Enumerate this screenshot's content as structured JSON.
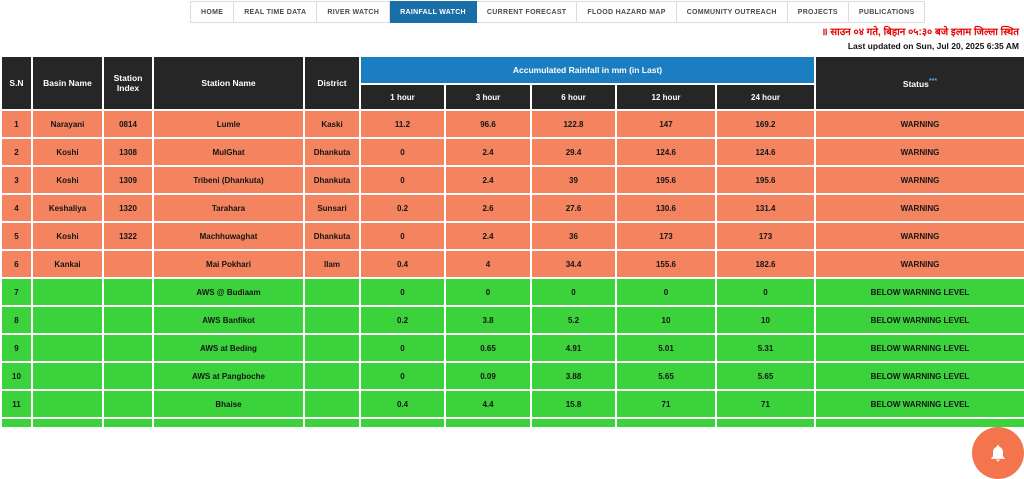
{
  "nav": {
    "tabs": [
      {
        "label": "HOME",
        "active": false
      },
      {
        "label": "REAL TIME DATA",
        "active": false
      },
      {
        "label": "RIVER WATCH",
        "active": false
      },
      {
        "label": "RAINFALL WATCH",
        "active": true
      },
      {
        "label": "CURRENT FORECAST",
        "active": false
      },
      {
        "label": "FLOOD HAZARD MAP",
        "active": false
      },
      {
        "label": "COMMUNITY OUTREACH",
        "active": false
      },
      {
        "label": "PROJECTS",
        "active": false
      },
      {
        "label": "PUBLICATIONS",
        "active": false
      }
    ]
  },
  "notice": {
    "marquee": "॥ साउन ०४ गते, बिहान ०५:३० बजे इलाम जिल्ला स्थित",
    "last_updated": "Last updated on Sun, Jul 20, 2025 6:35 AM"
  },
  "table": {
    "headers": {
      "sn": "S.N",
      "basin": "Basin Name",
      "index": "Station Index",
      "station": "Station Name",
      "district": "District"
    },
    "rainfall_header": "Accumulated Rainfall in mm (in Last)",
    "hour_columns": [
      "1 hour",
      "3 hour",
      "6 hour",
      "12 hour",
      "24 hour"
    ],
    "status_label": "Status",
    "status_sup": "***",
    "rows": [
      {
        "sn": "1",
        "basin": "Narayani",
        "index": "0814",
        "station": "Lumle",
        "district": "Kaski",
        "h1": "11.2",
        "h3": "96.6",
        "h6": "122.8",
        "h12": "147",
        "h24": "169.2",
        "status": "WARNING",
        "level": "warning"
      },
      {
        "sn": "2",
        "basin": "Koshi",
        "index": "1308",
        "station": "MulGhat",
        "district": "Dhankuta",
        "h1": "0",
        "h3": "2.4",
        "h6": "29.4",
        "h12": "124.6",
        "h24": "124.6",
        "status": "WARNING",
        "level": "warning"
      },
      {
        "sn": "3",
        "basin": "Koshi",
        "index": "1309",
        "station": "Tribeni (Dhankuta)",
        "district": "Dhankuta",
        "h1": "0",
        "h3": "2.4",
        "h6": "39",
        "h12": "195.6",
        "h24": "195.6",
        "status": "WARNING",
        "level": "warning"
      },
      {
        "sn": "4",
        "basin": "Keshaliya",
        "index": "1320",
        "station": "Tarahara",
        "district": "Sunsari",
        "h1": "0.2",
        "h3": "2.6",
        "h6": "27.6",
        "h12": "130.6",
        "h24": "131.4",
        "status": "WARNING",
        "level": "warning"
      },
      {
        "sn": "5",
        "basin": "Koshi",
        "index": "1322",
        "station": "Machhuwaghat",
        "district": "Dhankuta",
        "h1": "0",
        "h3": "2.4",
        "h6": "36",
        "h12": "173",
        "h24": "173",
        "status": "WARNING",
        "level": "warning"
      },
      {
        "sn": "6",
        "basin": "Kankai",
        "index": "",
        "station": "Mai Pokhari",
        "district": "Ilam",
        "h1": "0.4",
        "h3": "4",
        "h6": "34.4",
        "h12": "155.6",
        "h24": "182.6",
        "status": "WARNING",
        "level": "warning"
      },
      {
        "sn": "7",
        "basin": "",
        "index": "",
        "station": "AWS @ Budiaam",
        "district": "",
        "h1": "0",
        "h3": "0",
        "h6": "0",
        "h12": "0",
        "h24": "0",
        "status": "BELOW WARNING LEVEL",
        "level": "below"
      },
      {
        "sn": "8",
        "basin": "",
        "index": "",
        "station": "AWS Banfikot",
        "district": "",
        "h1": "0.2",
        "h3": "3.8",
        "h6": "5.2",
        "h12": "10",
        "h24": "10",
        "status": "BELOW WARNING LEVEL",
        "level": "below"
      },
      {
        "sn": "9",
        "basin": "",
        "index": "",
        "station": "AWS at Beding",
        "district": "",
        "h1": "0",
        "h3": "0.65",
        "h6": "4.91",
        "h12": "5.01",
        "h24": "5.31",
        "status": "BELOW WARNING LEVEL",
        "level": "below"
      },
      {
        "sn": "10",
        "basin": "",
        "index": "",
        "station": "AWS at Pangboche",
        "district": "",
        "h1": "0",
        "h3": "0.09",
        "h6": "3.88",
        "h12": "5.65",
        "h24": "5.65",
        "status": "BELOW WARNING LEVEL",
        "level": "below"
      },
      {
        "sn": "11",
        "basin": "",
        "index": "",
        "station": "Bhaise",
        "district": "",
        "h1": "0.4",
        "h3": "4.4",
        "h6": "15.8",
        "h12": "71",
        "h24": "71",
        "status": "BELOW WARNING LEVEL",
        "level": "below"
      }
    ],
    "partial_row": {
      "level": "below"
    }
  },
  "fab": {
    "icon": "bell-icon"
  },
  "colors": {
    "nav-active": "#1a6fa8",
    "band-blue": "#1b7ec0",
    "header-dark": "#262626",
    "warning-orange": "#f4845f",
    "safe-green": "#3cd23c",
    "fab-orange": "#f4744d",
    "alert-red": "#e60000"
  }
}
